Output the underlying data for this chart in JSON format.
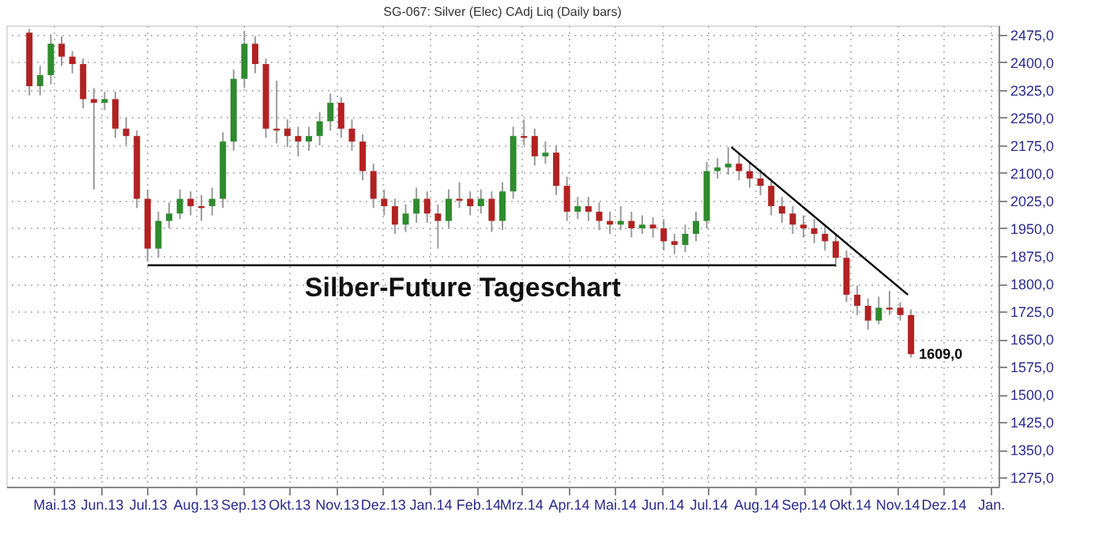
{
  "chart_data": {
    "type": "candlestick",
    "title": "SG-067: Silver (Elec) CAdj Liq (Daily bars)",
    "subtitle": "Silber-Future Tageschart",
    "x": [
      "2013-04-15",
      "2013-04-22",
      "2013-04-29",
      "2013-05-06",
      "2013-05-13",
      "2013-05-20",
      "2013-05-27",
      "2013-06-03",
      "2013-06-10",
      "2013-06-17",
      "2013-06-24",
      "2013-07-01",
      "2013-07-08",
      "2013-07-15",
      "2013-07-22",
      "2013-07-29",
      "2013-08-05",
      "2013-08-12",
      "2013-08-19",
      "2013-08-26",
      "2013-09-02",
      "2013-09-09",
      "2013-09-16",
      "2013-09-23",
      "2013-09-30",
      "2013-10-07",
      "2013-10-14",
      "2013-10-21",
      "2013-10-28",
      "2013-11-04",
      "2013-11-11",
      "2013-11-18",
      "2013-11-25",
      "2013-12-02",
      "2013-12-09",
      "2013-12-16",
      "2013-12-23",
      "2013-12-30",
      "2014-01-06",
      "2014-01-13",
      "2014-01-20",
      "2014-01-27",
      "2014-02-03",
      "2014-02-10",
      "2014-02-17",
      "2014-02-24",
      "2014-03-03",
      "2014-03-10",
      "2014-03-17",
      "2014-03-24",
      "2014-03-31",
      "2014-04-07",
      "2014-04-14",
      "2014-04-21",
      "2014-04-28",
      "2014-05-05",
      "2014-05-12",
      "2014-05-19",
      "2014-05-26",
      "2014-06-02",
      "2014-06-09",
      "2014-06-16",
      "2014-06-23",
      "2014-06-30",
      "2014-07-07",
      "2014-07-14",
      "2014-07-21",
      "2014-07-28",
      "2014-08-04",
      "2014-08-11",
      "2014-08-18",
      "2014-08-25",
      "2014-09-01",
      "2014-09-08",
      "2014-09-15",
      "2014-09-22",
      "2014-09-29",
      "2014-10-06",
      "2014-10-13",
      "2014-10-20",
      "2014-10-27",
      "2014-11-03",
      "2014-11-10"
    ],
    "ohlc": [
      [
        2480,
        2490,
        2310,
        2335
      ],
      [
        2335,
        2390,
        2310,
        2365
      ],
      [
        2365,
        2475,
        2340,
        2450
      ],
      [
        2450,
        2470,
        2390,
        2415
      ],
      [
        2415,
        2430,
        2370,
        2395
      ],
      [
        2395,
        2410,
        2275,
        2300
      ],
      [
        2300,
        2330,
        2055,
        2290
      ],
      [
        2290,
        2320,
        2270,
        2300
      ],
      [
        2300,
        2320,
        2195,
        2220
      ],
      [
        2220,
        2250,
        2175,
        2200
      ],
      [
        2200,
        2215,
        2005,
        2030
      ],
      [
        2030,
        2055,
        1860,
        1895
      ],
      [
        1895,
        1995,
        1870,
        1970
      ],
      [
        1970,
        2020,
        1950,
        1990
      ],
      [
        1990,
        2055,
        1975,
        2030
      ],
      [
        2030,
        2050,
        1985,
        2010
      ],
      [
        2010,
        2040,
        1970,
        2005
      ],
      [
        2010,
        2060,
        1985,
        2030
      ],
      [
        2030,
        2210,
        2005,
        2185
      ],
      [
        2185,
        2380,
        2160,
        2355
      ],
      [
        2355,
        2485,
        2330,
        2450
      ],
      [
        2450,
        2470,
        2370,
        2395
      ],
      [
        2395,
        2410,
        2195,
        2220
      ],
      [
        2220,
        2350,
        2180,
        2215
      ],
      [
        2220,
        2245,
        2170,
        2200
      ],
      [
        2200,
        2225,
        2145,
        2185
      ],
      [
        2185,
        2225,
        2160,
        2200
      ],
      [
        2200,
        2265,
        2175,
        2240
      ],
      [
        2240,
        2315,
        2215,
        2290
      ],
      [
        2290,
        2305,
        2195,
        2220
      ],
      [
        2220,
        2245,
        2160,
        2185
      ],
      [
        2185,
        2205,
        2080,
        2105
      ],
      [
        2105,
        2125,
        2005,
        2030
      ],
      [
        2030,
        2055,
        1985,
        2010
      ],
      [
        2010,
        2030,
        1935,
        1960
      ],
      [
        1960,
        2015,
        1940,
        1990
      ],
      [
        1990,
        2060,
        1965,
        2030
      ],
      [
        2030,
        2050,
        1965,
        1990
      ],
      [
        1990,
        2015,
        1895,
        1970
      ],
      [
        1970,
        2055,
        1950,
        2030
      ],
      [
        2030,
        2075,
        2005,
        2025
      ],
      [
        2030,
        2050,
        1985,
        2010
      ],
      [
        2010,
        2055,
        1990,
        2030
      ],
      [
        2030,
        2050,
        1940,
        1970
      ],
      [
        1970,
        2075,
        1945,
        2050
      ],
      [
        2050,
        2225,
        2030,
        2200
      ],
      [
        2200,
        2245,
        2175,
        2195
      ],
      [
        2200,
        2220,
        2120,
        2145
      ],
      [
        2145,
        2185,
        2125,
        2155
      ],
      [
        2155,
        2175,
        2040,
        2065
      ],
      [
        2065,
        2090,
        1970,
        1995
      ],
      [
        1995,
        2035,
        1975,
        2010
      ],
      [
        2010,
        2035,
        1970,
        1995
      ],
      [
        1995,
        2020,
        1945,
        1970
      ],
      [
        1970,
        1995,
        1935,
        1960
      ],
      [
        1960,
        2010,
        1945,
        1970
      ],
      [
        1970,
        1995,
        1925,
        1950
      ],
      [
        1950,
        1985,
        1935,
        1960
      ],
      [
        1960,
        1980,
        1925,
        1950
      ],
      [
        1950,
        1975,
        1890,
        1915
      ],
      [
        1915,
        1935,
        1880,
        1905
      ],
      [
        1905,
        1960,
        1885,
        1935
      ],
      [
        1935,
        1995,
        1915,
        1970
      ],
      [
        1970,
        2130,
        1950,
        2105
      ],
      [
        2105,
        2140,
        2085,
        2115
      ],
      [
        2115,
        2170,
        2095,
        2125
      ],
      [
        2125,
        2150,
        2080,
        2105
      ],
      [
        2105,
        2130,
        2060,
        2085
      ],
      [
        2085,
        2110,
        2040,
        2065
      ],
      [
        2065,
        2085,
        1985,
        2010
      ],
      [
        2010,
        2035,
        1965,
        1990
      ],
      [
        1990,
        2010,
        1935,
        1960
      ],
      [
        1960,
        1985,
        1925,
        1950
      ],
      [
        1950,
        1975,
        1910,
        1935
      ],
      [
        1935,
        1955,
        1890,
        1915
      ],
      [
        1915,
        1935,
        1845,
        1870
      ],
      [
        1870,
        1890,
        1750,
        1770
      ],
      [
        1770,
        1795,
        1715,
        1740
      ],
      [
        1740,
        1760,
        1675,
        1700
      ],
      [
        1700,
        1765,
        1690,
        1735
      ],
      [
        1735,
        1780,
        1715,
        1730
      ],
      [
        1735,
        1750,
        1700,
        1715
      ],
      [
        1715,
        1730,
        1600,
        1609
      ]
    ],
    "colors": [
      "#b22222",
      "#2e8b2e",
      "#2e8b2e",
      "#b22222",
      "#b22222",
      "#b22222",
      "#b22222",
      "#2e8b2e",
      "#b22222",
      "#b22222",
      "#b22222",
      "#b22222",
      "#2e8b2e",
      "#2e8b2e",
      "#2e8b2e",
      "#b22222",
      "#b22222",
      "#2e8b2e",
      "#2e8b2e",
      "#2e8b2e",
      "#2e8b2e",
      "#b22222",
      "#b22222",
      "#b22222",
      "#b22222",
      "#b22222",
      "#2e8b2e",
      "#2e8b2e",
      "#2e8b2e",
      "#b22222",
      "#b22222",
      "#b22222",
      "#b22222",
      "#b22222",
      "#b22222",
      "#2e8b2e",
      "#2e8b2e",
      "#b22222",
      "#b22222",
      "#2e8b2e",
      "#b22222",
      "#b22222",
      "#2e8b2e",
      "#b22222",
      "#2e8b2e",
      "#2e8b2e",
      "#b22222",
      "#b22222",
      "#2e8b2e",
      "#b22222",
      "#b22222",
      "#2e8b2e",
      "#b22222",
      "#b22222",
      "#b22222",
      "#2e8b2e",
      "#b22222",
      "#2e8b2e",
      "#b22222",
      "#b22222",
      "#b22222",
      "#2e8b2e",
      "#2e8b2e",
      "#2e8b2e",
      "#2e8b2e",
      "#2e8b2e",
      "#b22222",
      "#b22222",
      "#b22222",
      "#b22222",
      "#b22222",
      "#b22222",
      "#b22222",
      "#b22222",
      "#b22222",
      "#b22222",
      "#b22222",
      "#b22222",
      "#b22222",
      "#2e8b2e",
      "#b22222",
      "#b22222",
      "#b22222"
    ],
    "series": [
      {
        "type": "line",
        "color": "#000000",
        "x": [
          "2013-07-01",
          "2014-09-22"
        ],
        "values": [
          1850,
          1850
        ]
      },
      {
        "type": "line",
        "color": "#000000",
        "x": [
          "2014-07-16",
          "2014-11-08"
        ],
        "values": [
          2170,
          1770
        ]
      }
    ],
    "annotations": [
      {
        "text": "1609,0",
        "x": "2014-11-10",
        "y": 1609
      }
    ],
    "xlim": [
      "2013-03-31",
      "2015-01-06"
    ],
    "xticks": [
      {
        "value": "2013-05-01",
        "label": "Mai.13"
      },
      {
        "value": "2013-06-01",
        "label": "Jun.13"
      },
      {
        "value": "2013-07-01",
        "label": "Jul.13"
      },
      {
        "value": "2013-08-01",
        "label": "Aug.13"
      },
      {
        "value": "2013-09-01",
        "label": "Sep.13"
      },
      {
        "value": "2013-10-01",
        "label": "Okt.13"
      },
      {
        "value": "2013-11-01",
        "label": "Nov.13"
      },
      {
        "value": "2013-12-01",
        "label": "Dez.13"
      },
      {
        "value": "2014-01-01",
        "label": "Jan.14"
      },
      {
        "value": "2014-02-01",
        "label": "Feb.14"
      },
      {
        "value": "2014-03-01",
        "label": "Mrz.14"
      },
      {
        "value": "2014-04-01",
        "label": "Apr.14"
      },
      {
        "value": "2014-05-01",
        "label": "Mai.14"
      },
      {
        "value": "2014-06-01",
        "label": "Jun.14"
      },
      {
        "value": "2014-07-01",
        "label": "Jul.14"
      },
      {
        "value": "2014-08-01",
        "label": "Aug.14"
      },
      {
        "value": "2014-09-01",
        "label": "Sep.14"
      },
      {
        "value": "2014-10-01",
        "label": "Okt.14"
      },
      {
        "value": "2014-11-01",
        "label": "Nov.14"
      },
      {
        "value": "2014-12-01",
        "label": "Dez.14"
      },
      {
        "value": "2015-01-01",
        "label": "Jan."
      }
    ],
    "ylim": [
      1250,
      2500
    ],
    "yticks": [
      {
        "value": 1275,
        "label": "1275,0"
      },
      {
        "value": 1350,
        "label": "1350,0"
      },
      {
        "value": 1425,
        "label": "1425,0"
      },
      {
        "value": 1500,
        "label": "1500,0"
      },
      {
        "value": 1575,
        "label": "1575,0"
      },
      {
        "value": 1650,
        "label": "1650,0"
      },
      {
        "value": 1725,
        "label": "1725,0"
      },
      {
        "value": 1800,
        "label": "1800,0"
      },
      {
        "value": 1875,
        "label": "1875,0"
      },
      {
        "value": 1950,
        "label": "1950,0"
      },
      {
        "value": 2025,
        "label": "2025,0"
      },
      {
        "value": 2100,
        "label": "2100,0"
      },
      {
        "value": 2175,
        "label": "2175,0"
      },
      {
        "value": 2250,
        "label": "2250,0"
      },
      {
        "value": 2325,
        "label": "2325,0"
      },
      {
        "value": 2400,
        "label": "2400,0"
      },
      {
        "value": 2475,
        "label": "2475,0"
      }
    ],
    "grid": true
  }
}
